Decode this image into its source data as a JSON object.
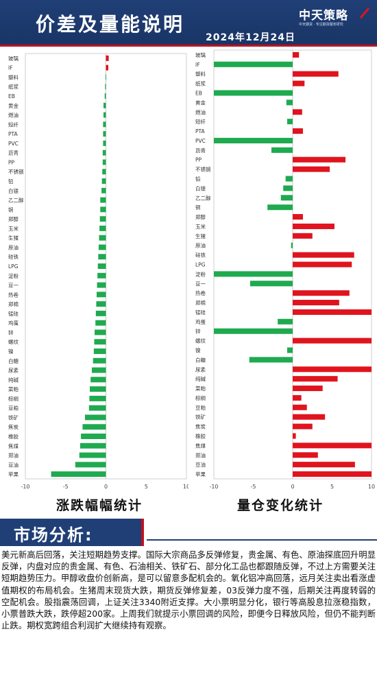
{
  "header": {
    "title": "价差及量能说明",
    "date": "2024年12月24日",
    "logo_name": "中天策略",
    "logo_slogan": "中天期货 · 专注期货服务研究"
  },
  "captions": {
    "left": "涨跌幅幅统计",
    "right": "量仓变化统计"
  },
  "section": {
    "title": "市场分析:"
  },
  "analysis_text": "美元新高后回落，关注短期趋势支撑。国际大宗商品多反弹修复，贵金属、有色、原油探底回升明显反弹，内盘对应的贵金属、有色、石油相关、铁矿石、部分化工品也都跟随反弹，不过上方需要关注短期趋势压力。甲醇收盘价创新高，是可以留意多配机会的。氧化铝冲高回落，远月关注卖出看涨虚值期权的布局机会。生猪周末现货大跌，期货反弹修复差，03反弹力度不强，后期关注再度转弱的空配机会。股指震荡回调，上证关注3340附近支撑。大小票明显分化，银行等高股息拉涨稳指数，小票普跌大跌，跌停超200家。上周我们就提示小票回调的风险，即便今日释放风险，但仍不能判断止跌。期权宽跨组合利润扩大继续持有观察。",
  "chart_data": [
    {
      "type": "bar",
      "orientation": "horizontal",
      "title": "涨跌幅幅统计",
      "xlim": [
        -10,
        10
      ],
      "ticks": [
        -10,
        -5,
        0,
        5,
        10
      ],
      "categories": [
        "玻璃",
        "IF",
        "塑料",
        "纸浆",
        "EB",
        "黄金",
        "燃油",
        "短纤",
        "PTA",
        "PVC",
        "沥青",
        "PP",
        "不锈钢",
        "铅",
        "白银",
        "乙二醇",
        "铜",
        "郑醇",
        "玉米",
        "生猪",
        "原油",
        "硅铁",
        "LPG",
        "淀粉",
        "豆一",
        "热卷",
        "郑棉",
        "锰硅",
        "鸡蛋",
        "锌",
        "螺纹",
        "镍",
        "白糖",
        "尿素",
        "纯碱",
        "菜粕",
        "棕榈",
        "豆粕",
        "铁矿",
        "焦炭",
        "橡胶",
        "焦煤",
        "郑油",
        "豆油",
        "苹果"
      ],
      "values": [
        0.35,
        0.3,
        -0.05,
        -0.1,
        -0.15,
        -0.3,
        -0.3,
        -0.35,
        -0.35,
        -0.35,
        -0.4,
        -0.4,
        -0.45,
        -0.5,
        -0.55,
        -0.7,
        -0.7,
        -0.75,
        -0.8,
        -0.85,
        -0.9,
        -0.95,
        -1.0,
        -1.05,
        -1.1,
        -1.15,
        -1.2,
        -1.25,
        -1.3,
        -1.4,
        -1.45,
        -1.5,
        -1.6,
        -1.75,
        -1.9,
        -2.0,
        -2.05,
        -2.1,
        -2.6,
        -2.9,
        -3.1,
        -3.2,
        -3.3,
        -3.8,
        -6.8
      ],
      "colors": {
        "positive": "#e0141e",
        "negative": "#1faa4f"
      }
    },
    {
      "type": "bar",
      "orientation": "horizontal",
      "title": "量仓变化统计",
      "xlim": [
        -10,
        10
      ],
      "ticks": [
        -10,
        -5,
        0,
        5,
        10
      ],
      "categories": [
        "玻璃",
        "IF",
        "塑料",
        "纸浆",
        "EB",
        "黄金",
        "燃油",
        "短纤",
        "PTA",
        "PVC",
        "沥青",
        "PP",
        "不锈钢",
        "铅",
        "白银",
        "乙二醇",
        "铜",
        "郑醇",
        "玉米",
        "生猪",
        "原油",
        "硅铁",
        "LPG",
        "淀粉",
        "豆一",
        "热卷",
        "郑棉",
        "锰硅",
        "鸡蛋",
        "锌",
        "螺纹",
        "镍",
        "白糖",
        "尿素",
        "纯碱",
        "菜粕",
        "棕榈",
        "豆粕",
        "铁矿",
        "焦炭",
        "橡胶",
        "焦煤",
        "郑油",
        "豆油",
        "苹果"
      ],
      "values": [
        0.8,
        -10,
        5.8,
        1.5,
        -10,
        -0.8,
        1.2,
        -0.7,
        1.3,
        -10,
        -2.7,
        6.7,
        4.7,
        -0.9,
        -1.2,
        -1.5,
        -3.2,
        1.3,
        5.3,
        2.5,
        -0.2,
        7.8,
        7.5,
        -10,
        -5.4,
        7.2,
        5.9,
        10,
        -1.9,
        -10,
        10,
        -0.7,
        -5.5,
        10,
        5.7,
        3.8,
        1.1,
        1.8,
        4.1,
        2.5,
        0.4,
        10,
        3.2,
        7.9,
        10
      ],
      "colors": {
        "positive": "#e0141e",
        "negative": "#1faa4f"
      }
    }
  ]
}
